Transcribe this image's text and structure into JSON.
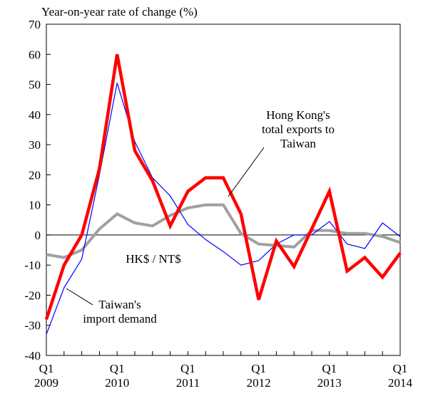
{
  "chart_data": {
    "type": "line",
    "y_axis_label": "Year-on-year rate of change (%)",
    "categories": [
      "Q1 2009",
      null,
      null,
      null,
      "Q1 2010",
      null,
      null,
      null,
      "Q1 2011",
      null,
      null,
      null,
      "Q1 2012",
      null,
      null,
      null,
      "Q1 2013",
      null,
      null,
      null,
      "Q1 2014"
    ],
    "ylim": [
      -40,
      70
    ],
    "yticks": [
      -40,
      -30,
      -20,
      -10,
      0,
      10,
      20,
      30,
      40,
      50,
      60,
      70
    ],
    "series": [
      {
        "name": "HK$ / NT$",
        "color": "#a0a0a0",
        "values": [
          -6.5,
          -7.5,
          -5,
          2,
          7,
          4,
          3,
          6.5,
          9,
          10,
          10,
          0.5,
          -3,
          -3.5,
          -4,
          1.5,
          1.5,
          0.5,
          0.5,
          -0.5,
          -2.5
        ]
      },
      {
        "name": "Taiwan's import demand",
        "color": "#0000ff",
        "values": [
          -33,
          -17.5,
          -8,
          20,
          50.5,
          31,
          19,
          13,
          3.5,
          -1.5,
          -5.5,
          -10,
          -8.5,
          -3,
          0,
          0,
          4.5,
          -3,
          -4.5,
          4,
          -0.5
        ]
      },
      {
        "name": "Hong Kong's total exports to Taiwan",
        "color": "#ff0000",
        "values": [
          -28,
          -10,
          0,
          22,
          60,
          28,
          18,
          3,
          14.5,
          19,
          19,
          7,
          -21.5,
          -2,
          -10.5,
          2,
          14.5,
          -12,
          -7.5,
          -14,
          -6
        ]
      }
    ]
  }
}
